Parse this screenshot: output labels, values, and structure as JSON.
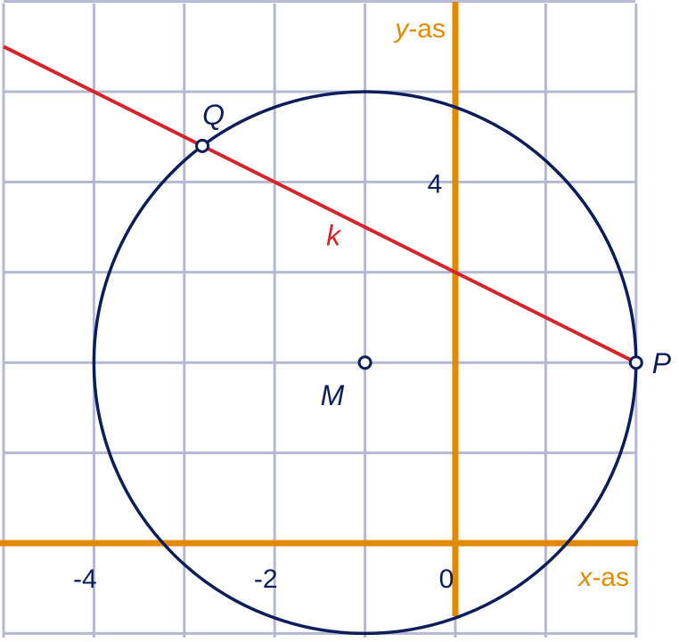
{
  "axes": {
    "x_label_var": "x",
    "x_label_rest": "-as",
    "y_label_var": "y",
    "y_label_rest": "-as",
    "x_range": [
      -5,
      2
    ],
    "y_range": [
      -1,
      6
    ],
    "x_tick_labels": [
      {
        "x": -4,
        "text": "-4"
      },
      {
        "x": -2,
        "text": "-2"
      },
      {
        "x": 0,
        "text": "0"
      }
    ],
    "y_tick_labels": [
      {
        "y": 4,
        "text": "4"
      }
    ],
    "grid": true
  },
  "circle": {
    "center": {
      "x": -1,
      "y": 2,
      "label": "M"
    },
    "radius": 3
  },
  "line": {
    "label": "k",
    "label_at": {
      "x": -1.35,
      "y": 3.3
    },
    "from": {
      "x": -5,
      "y": 5.5
    },
    "to": {
      "x": 2,
      "y": 2
    }
  },
  "points": [
    {
      "name": "Q",
      "x": -2.8,
      "y": 4.4
    },
    {
      "name": "P",
      "x": 2,
      "y": 2
    }
  ],
  "colors": {
    "grid": "#b4b8d2",
    "axis": "#e08a00",
    "circle": "#0b1e5b",
    "line": "#d8232a",
    "text": "#0b1e5b"
  }
}
